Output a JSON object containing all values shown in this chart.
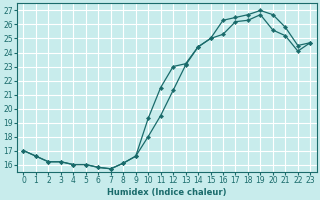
{
  "xlabel": "Humidex (Indice chaleur)",
  "background_color": "#c8ecec",
  "grid_color": "#ffffff",
  "line_color": "#1a6b6b",
  "xlim": [
    -0.5,
    23.5
  ],
  "ylim": [
    15.5,
    27.5
  ],
  "xticks": [
    0,
    1,
    2,
    3,
    4,
    5,
    6,
    7,
    8,
    9,
    10,
    11,
    12,
    13,
    14,
    15,
    16,
    17,
    18,
    19,
    20,
    21,
    22,
    23
  ],
  "yticks": [
    16,
    17,
    18,
    19,
    20,
    21,
    22,
    23,
    24,
    25,
    26,
    27
  ],
  "line1_x": [
    0,
    1,
    2,
    3,
    4,
    5,
    6,
    7,
    8,
    9,
    10,
    11,
    12,
    13,
    14,
    15,
    16,
    17,
    18,
    19,
    20,
    21,
    22,
    23
  ],
  "line1_y": [
    17.0,
    16.6,
    16.2,
    16.2,
    16.0,
    16.0,
    15.8,
    15.7,
    16.1,
    16.6,
    18.0,
    19.5,
    21.3,
    23.1,
    24.4,
    25.0,
    25.3,
    26.2,
    26.3,
    26.7,
    25.6,
    25.2,
    24.1,
    24.7
  ],
  "line2_x": [
    0,
    1,
    2,
    3,
    4,
    5,
    6,
    7,
    8,
    9,
    10,
    11,
    12,
    13,
    14,
    15,
    16,
    17,
    18,
    19,
    20,
    21,
    22,
    23
  ],
  "line2_y": [
    17.0,
    16.6,
    16.2,
    16.2,
    16.0,
    16.0,
    15.8,
    15.7,
    16.1,
    16.6,
    19.3,
    21.5,
    23.0,
    23.2,
    24.4,
    25.0,
    26.3,
    26.5,
    26.7,
    27.0,
    26.7,
    25.8,
    24.5,
    24.7
  ]
}
